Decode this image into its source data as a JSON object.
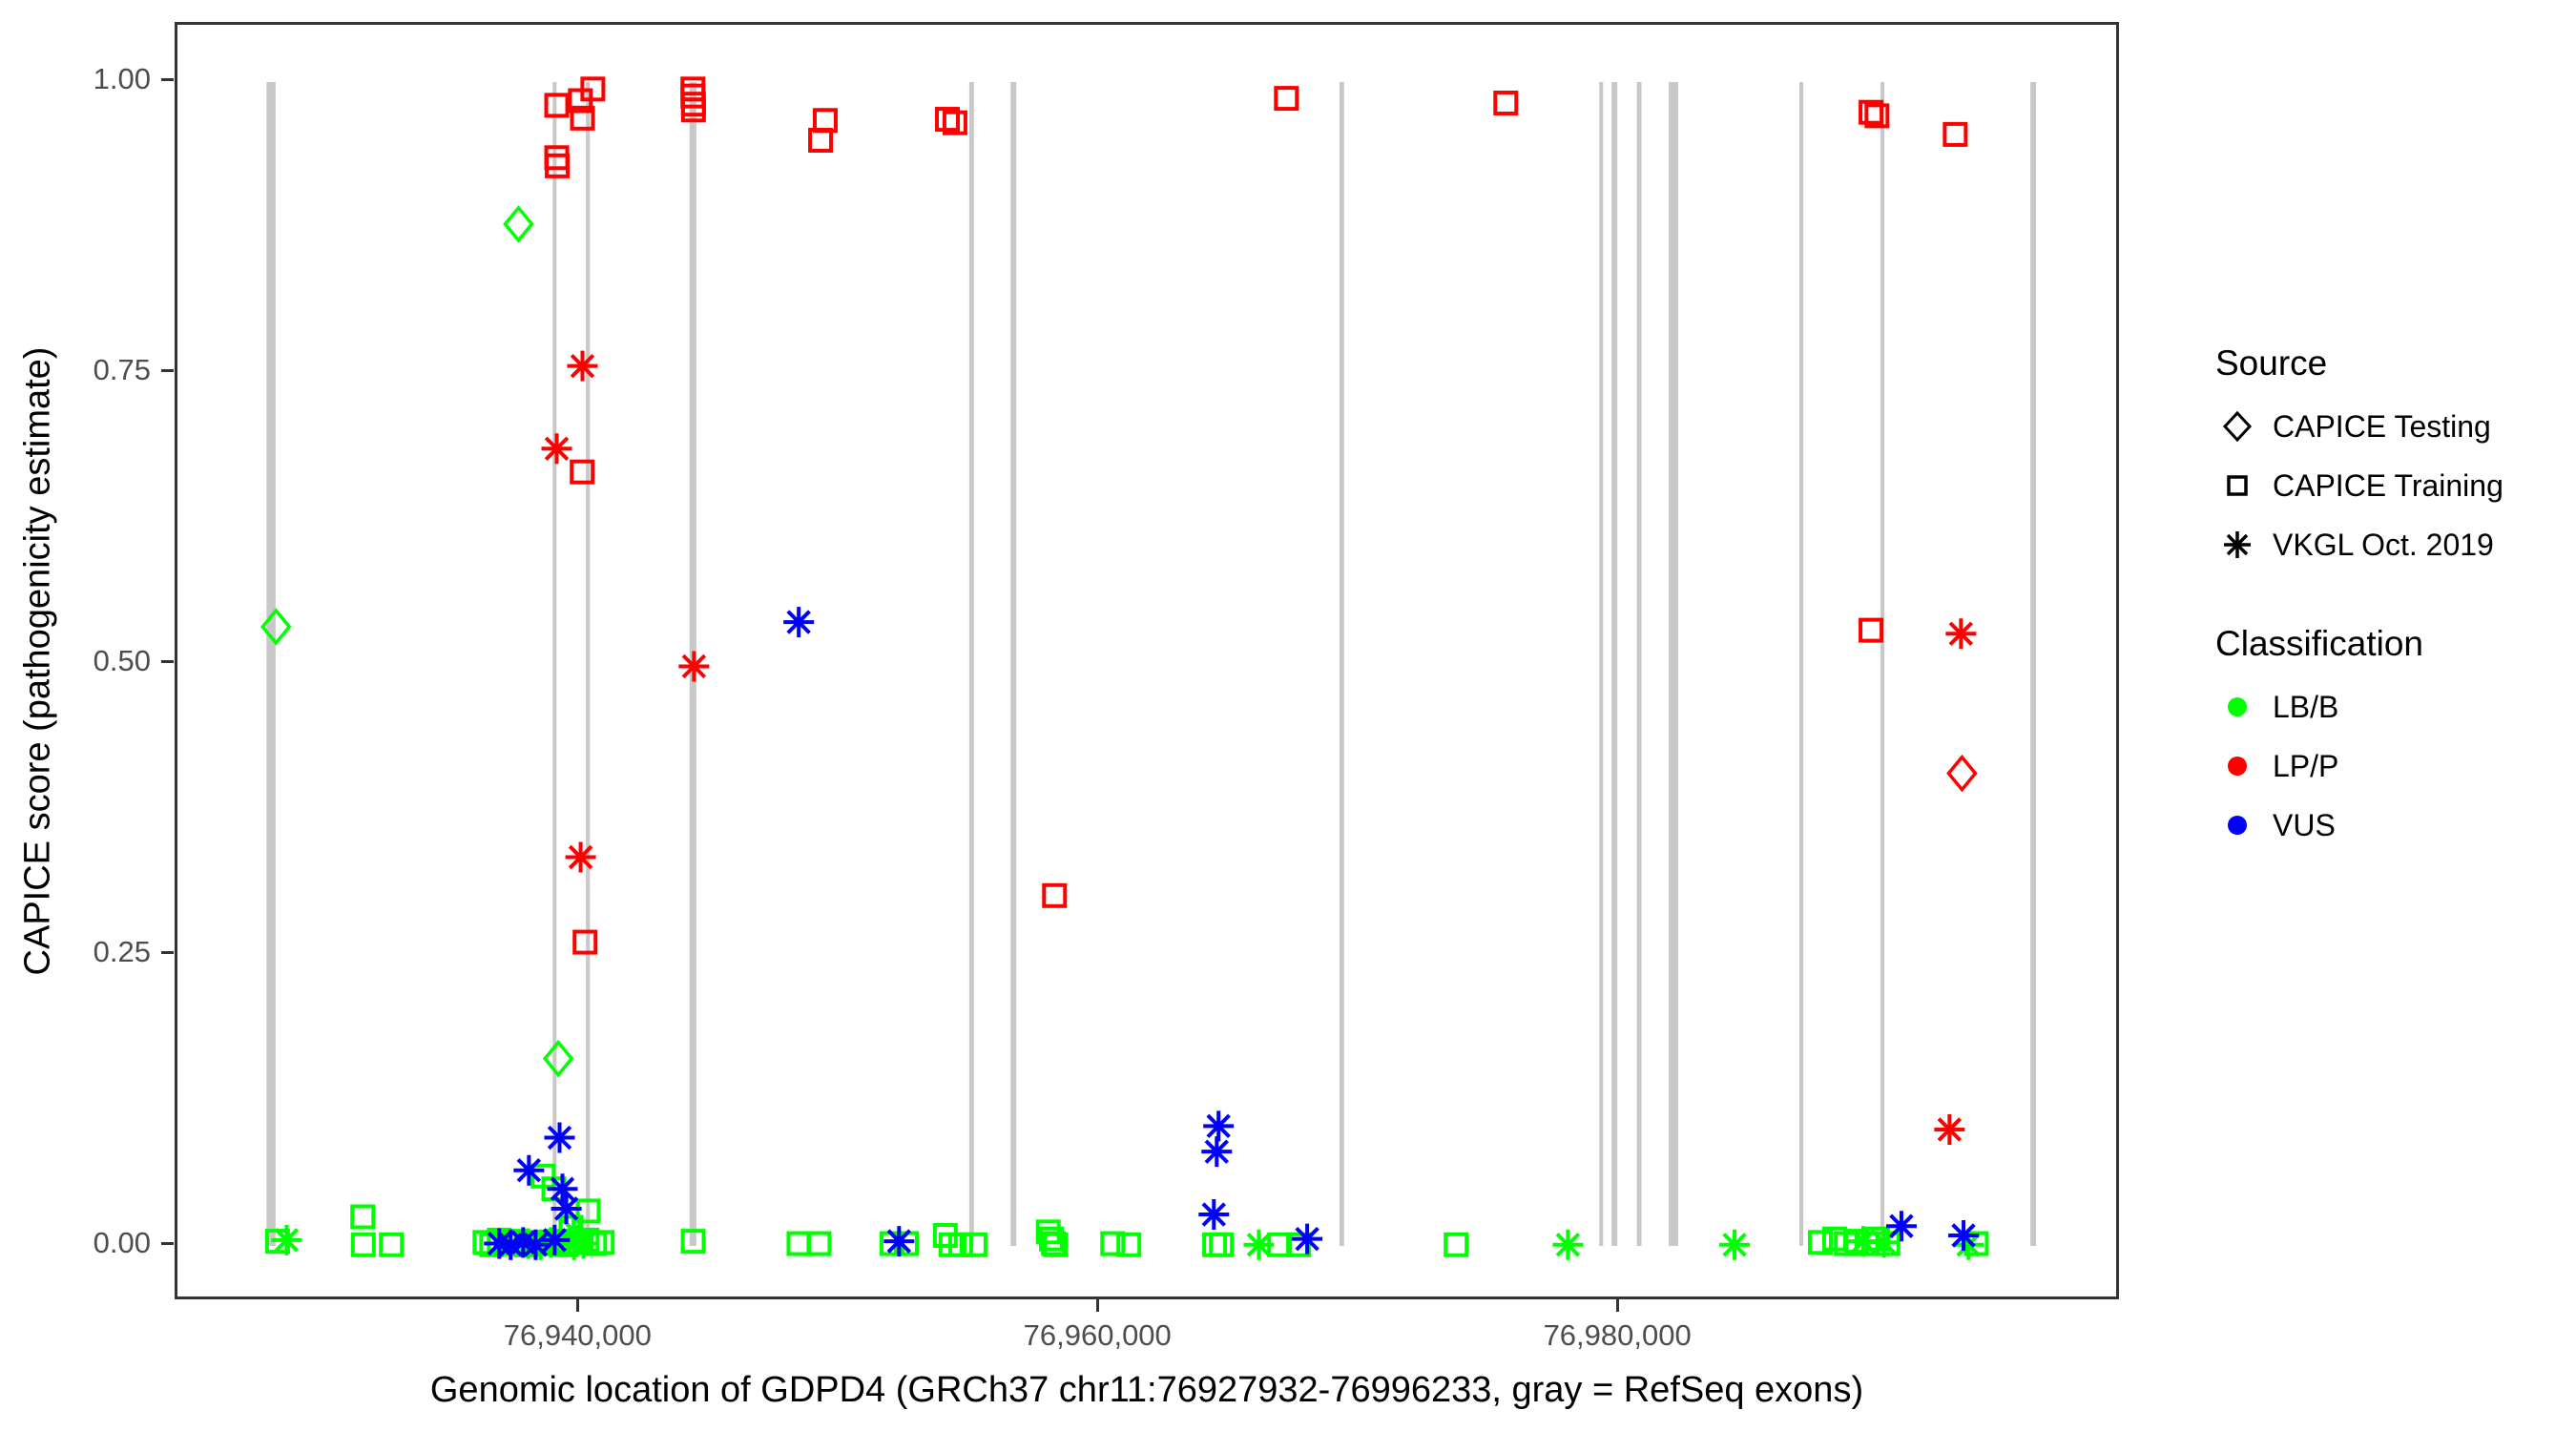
{
  "figure": {
    "background": "#ffffff"
  },
  "legend": {
    "source": {
      "title": "Source",
      "items": [
        {
          "label": "CAPICE Testing",
          "marker": "diamond"
        },
        {
          "label": "CAPICE Training",
          "marker": "square"
        },
        {
          "label": "VKGL Oct. 2019",
          "marker": "asterisk"
        }
      ]
    },
    "classification": {
      "title": "Classification",
      "items": [
        {
          "label": "LB/B",
          "color": "#00ff00"
        },
        {
          "label": "LP/P",
          "color": "#ff0000"
        },
        {
          "label": "VUS",
          "color": "#0000ff"
        }
      ]
    }
  },
  "colors": {
    "lbb": "#00ff00",
    "lpp": "#ff0000",
    "vus": "#0000ff",
    "exon": "#c8c8c8",
    "axis_text": "#4d4d4d",
    "panel_border": "#333333"
  },
  "chart_data": {
    "type": "scatter",
    "title": "",
    "xlabel": "Genomic location of GDPD4 (GRCh37 chr11:76927932-76996233, gray = RefSeq exons)",
    "ylabel": "CAPICE score (pathogenicity estimate)",
    "x_domain": [
      76924500,
      76999300
    ],
    "y_domain": [
      0,
      1
    ],
    "grid": false,
    "legend_position": "right",
    "x_ticks": [
      {
        "value": 76940000,
        "label": "76,940,000"
      },
      {
        "value": 76960000,
        "label": "76,960,000"
      },
      {
        "value": 76980000,
        "label": "76,980,000"
      }
    ],
    "y_ticks": [
      {
        "value": 0.0,
        "label": "0.00"
      },
      {
        "value": 0.25,
        "label": "0.25"
      },
      {
        "value": 0.5,
        "label": "0.50"
      },
      {
        "value": 0.75,
        "label": "0.75"
      },
      {
        "value": 1.0,
        "label": "1.00"
      }
    ],
    "exons_bp": [
      [
        76928100,
        350
      ],
      [
        76939010,
        150
      ],
      [
        76940290,
        150
      ],
      [
        76944330,
        260
      ],
      [
        76955050,
        180
      ],
      [
        76956660,
        220
      ],
      [
        76969290,
        180
      ],
      [
        76979270,
        150
      ],
      [
        76979780,
        220
      ],
      [
        76980730,
        180
      ],
      [
        76982050,
        370
      ],
      [
        76986970,
        150
      ],
      [
        76990090,
        150
      ],
      [
        76995890,
        220
      ]
    ],
    "series": [
      {
        "name": "CAPICE Testing LB/B",
        "source": "CAPICE Testing",
        "classification": "LB/B",
        "marker": "diamond",
        "color": "#00ff00",
        "points": [
          [
            76928290,
            0.532
          ],
          [
            76937620,
            0.878
          ],
          [
            76939150,
            0.161
          ]
        ]
      },
      {
        "name": "CAPICE Testing LP/P",
        "source": "CAPICE Testing",
        "classification": "LP/P",
        "marker": "diamond",
        "color": "#ff0000",
        "points": [
          [
            76993150,
            0.406
          ]
        ]
      },
      {
        "name": "CAPICE Training LB/B",
        "source": "CAPICE Training",
        "classification": "LB/B",
        "marker": "square",
        "color": "#00ff00",
        "points": [
          [
            76928350,
            0.004
          ],
          [
            76931630,
            0.025
          ],
          [
            76931650,
            0.001
          ],
          [
            76932730,
            0.001
          ],
          [
            76936330,
            0.003
          ],
          [
            76936590,
            0.001
          ],
          [
            76936880,
            0.005
          ],
          [
            76937140,
            0.002
          ],
          [
            76937540,
            0.004
          ],
          [
            76937910,
            0.001
          ],
          [
            76938200,
            0.003
          ],
          [
            76938640,
            0.002
          ],
          [
            76939160,
            0.004
          ],
          [
            76939450,
            0.001
          ],
          [
            76939890,
            0.003
          ],
          [
            76940260,
            0.005
          ],
          [
            76940550,
            0.002
          ],
          [
            76940840,
            0.003
          ],
          [
            76938570,
            0.06
          ],
          [
            76938980,
            0.049
          ],
          [
            76939640,
            0.016
          ],
          [
            76940300,
            0.03
          ],
          [
            76944340,
            0.004
          ],
          [
            76948410,
            0.002
          ],
          [
            76949180,
            0.002
          ],
          [
            76951990,
            0.002
          ],
          [
            76952540,
            0.002
          ],
          [
            76954040,
            0.009
          ],
          [
            76954260,
            0.001
          ],
          [
            76954630,
            0.001
          ],
          [
            76955180,
            0.001
          ],
          [
            76958000,
            0.012
          ],
          [
            76958120,
            0.006
          ],
          [
            76958200,
            0.002
          ],
          [
            76958280,
            0.001
          ],
          [
            76960480,
            0.002
          ],
          [
            76961100,
            0.001
          ],
          [
            76964400,
            0.001
          ],
          [
            76964660,
            0.001
          ],
          [
            76966900,
            0.001
          ],
          [
            76967630,
            0.001
          ],
          [
            76973690,
            0.001
          ],
          [
            76987700,
            0.003
          ],
          [
            76988250,
            0.006
          ],
          [
            76988700,
            0.002
          ],
          [
            76989100,
            0.004
          ],
          [
            76989500,
            0.002
          ],
          [
            76989900,
            0.006
          ],
          [
            76990300,
            0.002
          ],
          [
            76993700,
            0.002
          ]
        ]
      },
      {
        "name": "CAPICE Training LP/P",
        "source": "CAPICE Training",
        "classification": "LP/P",
        "marker": "square",
        "color": "#ff0000",
        "points": [
          [
            76939090,
            0.98
          ],
          [
            76940000,
            0.984
          ],
          [
            76940480,
            0.994
          ],
          [
            76940080,
            0.969
          ],
          [
            76939090,
            0.935
          ],
          [
            76939110,
            0.928
          ],
          [
            76944330,
            0.994
          ],
          [
            76944330,
            0.988
          ],
          [
            76944350,
            0.981
          ],
          [
            76944350,
            0.976
          ],
          [
            76949420,
            0.967
          ],
          [
            76949240,
            0.95
          ],
          [
            76954120,
            0.968
          ],
          [
            76954410,
            0.965
          ],
          [
            76967160,
            0.986
          ],
          [
            76975600,
            0.982
          ],
          [
            76989650,
            0.974
          ],
          [
            76989880,
            0.971
          ],
          [
            76992890,
            0.955
          ],
          [
            76989650,
            0.529
          ],
          [
            76958240,
            0.301
          ],
          [
            76940180,
            0.261
          ],
          [
            76940070,
            0.665
          ]
        ]
      },
      {
        "name": "VKGL LB/B",
        "source": "VKGL Oct. 2019",
        "classification": "LB/B",
        "marker": "asterisk",
        "color": "#00ff00",
        "points": [
          [
            76928700,
            0.005
          ],
          [
            76937990,
            0.002
          ],
          [
            76938470,
            0.001
          ],
          [
            76938870,
            0.003
          ],
          [
            76939740,
            0.013
          ],
          [
            76939760,
            0.001
          ],
          [
            76940120,
            0.002
          ],
          [
            76966100,
            0.001
          ],
          [
            76977990,
            0.001
          ],
          [
            76984400,
            0.001
          ],
          [
            76989350,
            0.004
          ],
          [
            76990150,
            0.003
          ],
          [
            76993400,
            0.001
          ]
        ]
      },
      {
        "name": "VKGL LP/P",
        "source": "VKGL Oct. 2019",
        "classification": "LP/P",
        "marker": "asterisk",
        "color": "#ff0000",
        "points": [
          [
            76940080,
            0.756
          ],
          [
            76939090,
            0.685
          ],
          [
            76940010,
            0.334
          ],
          [
            76944370,
            0.498
          ],
          [
            76993110,
            0.526
          ],
          [
            76992670,
            0.1
          ]
        ]
      },
      {
        "name": "VKGL VUS",
        "source": "VKGL Oct. 2019",
        "classification": "VUS",
        "marker": "asterisk",
        "color": "#0000ff",
        "points": [
          [
            76936880,
            0.002
          ],
          [
            76937320,
            0.001
          ],
          [
            76937800,
            0.003
          ],
          [
            76938280,
            0.001
          ],
          [
            76939010,
            0.005
          ],
          [
            76938020,
            0.065
          ],
          [
            76939200,
            0.093
          ],
          [
            76939310,
            0.049
          ],
          [
            76939460,
            0.032
          ],
          [
            76948400,
            0.536
          ],
          [
            76952260,
            0.004
          ],
          [
            76964370,
            0.027
          ],
          [
            76964480,
            0.081
          ],
          [
            76964550,
            0.103
          ],
          [
            76967960,
            0.006
          ],
          [
            76990820,
            0.017
          ],
          [
            76993210,
            0.009
          ]
        ]
      }
    ]
  }
}
